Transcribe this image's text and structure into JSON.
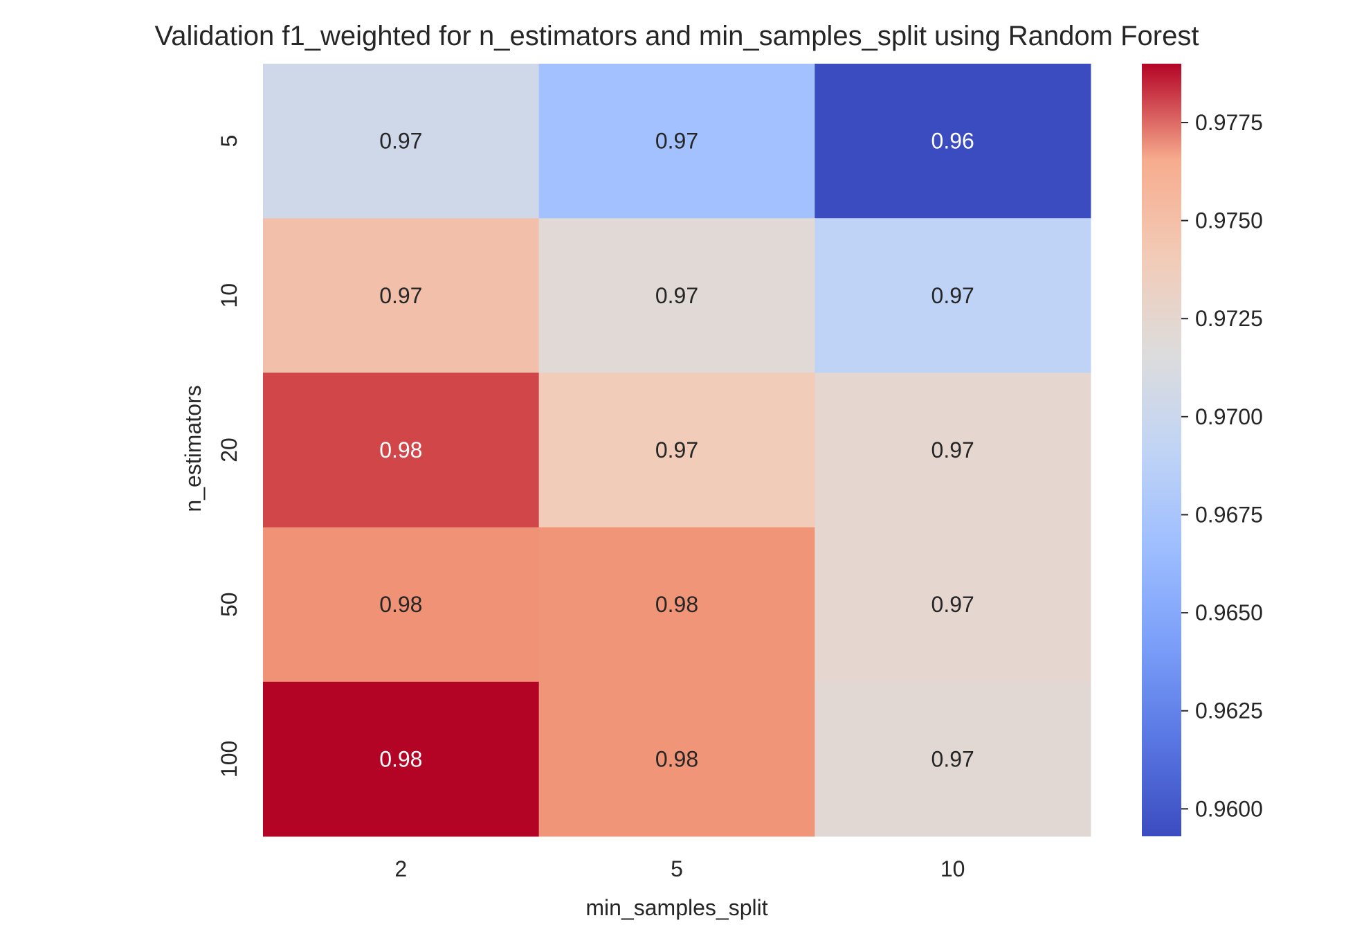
{
  "chart_data": {
    "type": "heatmap",
    "title": "Validation f1_weighted for n_estimators and min_samples_split using Random Forest",
    "xlabel": "min_samples_split",
    "ylabel": "n_estimators",
    "x_categories": [
      "2",
      "5",
      "10"
    ],
    "y_categories": [
      "5",
      "10",
      "20",
      "50",
      "100"
    ],
    "values": [
      [
        0.9703,
        0.967,
        0.9593
      ],
      [
        0.9745,
        0.972,
        0.969
      ],
      [
        0.9778,
        0.974,
        0.9725
      ],
      [
        0.9763,
        0.9762,
        0.9725
      ],
      [
        0.979,
        0.9762,
        0.9722
      ]
    ],
    "annotations": [
      [
        "0.97",
        "0.97",
        "0.96"
      ],
      [
        "0.97",
        "0.97",
        "0.97"
      ],
      [
        "0.98",
        "0.97",
        "0.97"
      ],
      [
        "0.98",
        "0.98",
        "0.97"
      ],
      [
        "0.98",
        "0.98",
        "0.97"
      ]
    ],
    "colormap": "coolwarm",
    "colorbar": {
      "vmin": 0.9593,
      "vmax": 0.979,
      "ticks": [
        "0.9600",
        "0.9625",
        "0.9650",
        "0.9675",
        "0.9700",
        "0.9725",
        "0.9750",
        "0.9775"
      ],
      "tick_values": [
        0.96,
        0.9625,
        0.965,
        0.9675,
        0.97,
        0.9725,
        0.975,
        0.9775
      ]
    }
  }
}
